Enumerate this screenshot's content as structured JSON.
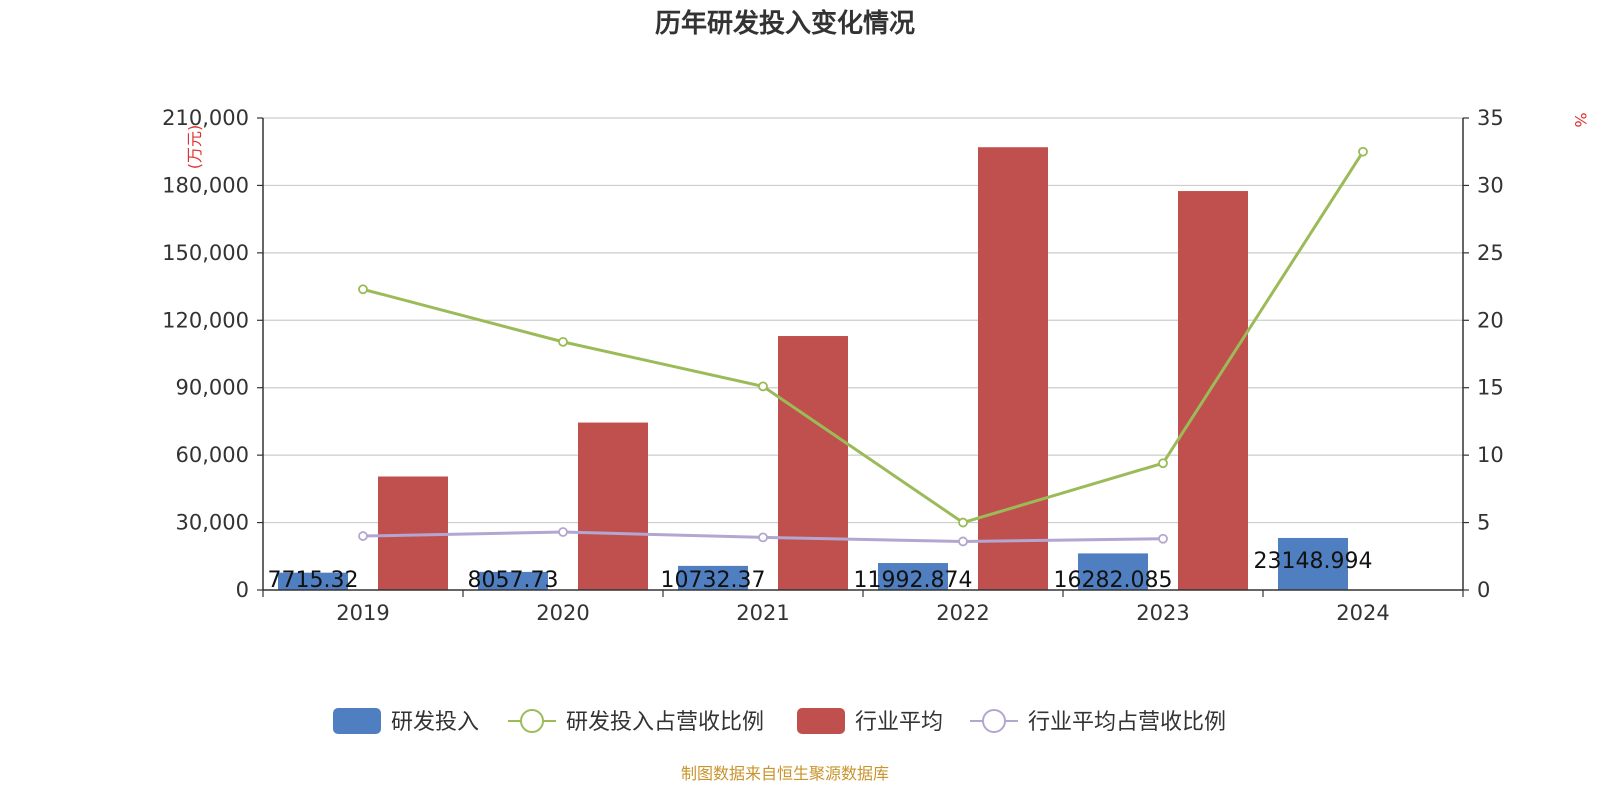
{
  "chart_data": {
    "type": "bar",
    "title": "历年研发投入变化情况",
    "categories": [
      "2019",
      "2020",
      "2021",
      "2022",
      "2023",
      "2024"
    ],
    "y_left": {
      "unit_label": "(万元)",
      "range": [
        0,
        210000
      ],
      "ticks": [
        "0",
        "30,000",
        "60,000",
        "90,000",
        "120,000",
        "150,000",
        "180,000",
        "210,000"
      ]
    },
    "y_right": {
      "unit_label": "%",
      "range": [
        0,
        35
      ],
      "ticks": [
        "0",
        "5",
        "10",
        "15",
        "20",
        "25",
        "30",
        "35"
      ]
    },
    "grid": true,
    "legend_position": "bottom",
    "series": [
      {
        "name": "研发投入",
        "kind": "bar",
        "axis": "left",
        "color": "#4f7fc0",
        "values": [
          7715.32,
          8057.73,
          10732.37,
          11992.874,
          16282.085,
          23148.994
        ],
        "labels": [
          "7715.32",
          "8057.73",
          "10732.37",
          "11992.874",
          "16282.085",
          "23148.994"
        ]
      },
      {
        "name": "研发投入占营收比例",
        "kind": "line",
        "axis": "right",
        "color": "#9bbb59",
        "values": [
          22.3,
          18.4,
          15.1,
          5.0,
          9.4,
          32.5
        ]
      },
      {
        "name": "行业平均",
        "kind": "bar",
        "axis": "left",
        "color": "#c0504d",
        "values": [
          50500,
          74500,
          113000,
          197000,
          177500,
          null
        ]
      },
      {
        "name": "行业平均占营收比例",
        "kind": "line",
        "axis": "right",
        "color": "#b3a6d0",
        "values": [
          4.0,
          4.3,
          3.9,
          3.6,
          3.8,
          null
        ]
      }
    ],
    "source": "制图数据来自恒生聚源数据库"
  }
}
